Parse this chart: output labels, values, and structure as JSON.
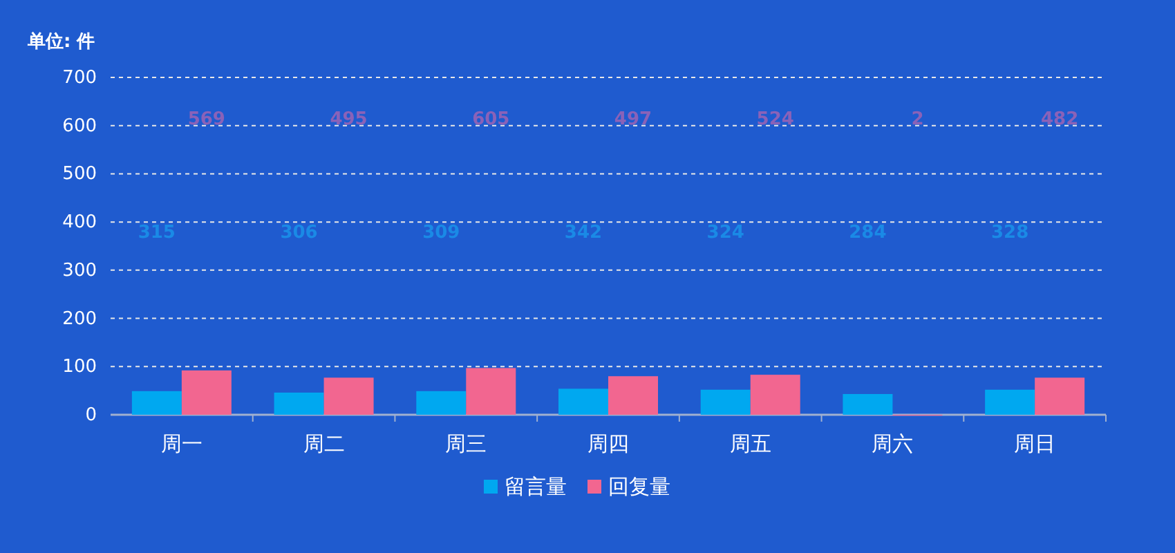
{
  "chart_data": {
    "type": "bar",
    "ylabel": "单位: 件",
    "categories": [
      "周一",
      "周二",
      "周三",
      "周四",
      "周五",
      "周六",
      "周日"
    ],
    "series": [
      {
        "name": "留言量",
        "color": "#00a8f0",
        "values": [
          49,
          46,
          49,
          54,
          52,
          43,
          52
        ]
      },
      {
        "name": "回复量",
        "color": "#f26690",
        "values": [
          92,
          77,
          97,
          80,
          83,
          0,
          77
        ]
      }
    ],
    "annotations": [
      "315",
      "569",
      "306",
      "495",
      "309",
      "605",
      "342",
      "497",
      "324",
      "524",
      "284",
      "2",
      "328",
      "482"
    ],
    "ylim": [
      0,
      700
    ],
    "yticks": [
      0,
      100,
      200,
      300,
      400,
      500,
      600,
      700
    ],
    "grid": "y",
    "legend": "bottom"
  }
}
